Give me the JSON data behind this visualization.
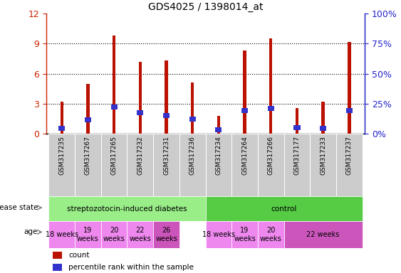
{
  "title": "GDS4025 / 1398014_at",
  "samples": [
    "GSM317235",
    "GSM317267",
    "GSM317265",
    "GSM317232",
    "GSM317231",
    "GSM317236",
    "GSM317234",
    "GSM317264",
    "GSM317266",
    "GSM317177",
    "GSM317233",
    "GSM317237"
  ],
  "count_values": [
    3.2,
    5.0,
    9.8,
    7.2,
    7.3,
    5.1,
    1.8,
    8.3,
    9.5,
    2.6,
    3.2,
    9.2
  ],
  "percentile_values": [
    4.5,
    11.5,
    22.5,
    17.5,
    15.0,
    12.5,
    3.5,
    19.5,
    21.0,
    5.0,
    4.5,
    19.5
  ],
  "bar_color": "#BB1100",
  "percentile_color": "#3333CC",
  "ylim_left": [
    0,
    12
  ],
  "ylim_right": [
    0,
    100
  ],
  "yticks_left": [
    0,
    3,
    6,
    9,
    12
  ],
  "yticks_right": [
    0,
    25,
    50,
    75,
    100
  ],
  "ytick_labels_left": [
    "0",
    "3",
    "6",
    "9",
    "12"
  ],
  "ytick_labels_right": [
    "0%",
    "25%",
    "50%",
    "75%",
    "100%"
  ],
  "disease_state_groups": [
    {
      "label": "streptozotocin-induced diabetes",
      "start": 0,
      "end": 6,
      "color": "#99EE88"
    },
    {
      "label": "control",
      "start": 6,
      "end": 12,
      "color": "#55CC44"
    }
  ],
  "age_groups": [
    {
      "label": "18 weeks",
      "start": 0,
      "end": 1,
      "color": "#EE88EE"
    },
    {
      "label": "19\nweeks",
      "start": 1,
      "end": 2,
      "color": "#EE88EE"
    },
    {
      "label": "20\nweeks",
      "start": 2,
      "end": 3,
      "color": "#EE88EE"
    },
    {
      "label": "22\nweeks",
      "start": 3,
      "end": 4,
      "color": "#EE88EE"
    },
    {
      "label": "26\nweeks",
      "start": 4,
      "end": 5,
      "color": "#CC55BB"
    },
    {
      "label": "18 weeks",
      "start": 6,
      "end": 7,
      "color": "#EE88EE"
    },
    {
      "label": "19\nweeks",
      "start": 7,
      "end": 8,
      "color": "#EE88EE"
    },
    {
      "label": "20\nweeks",
      "start": 8,
      "end": 9,
      "color": "#EE88EE"
    },
    {
      "label": "22 weeks",
      "start": 9,
      "end": 12,
      "color": "#CC55BB"
    }
  ],
  "legend_items": [
    {
      "label": "count",
      "color": "#BB1100"
    },
    {
      "label": "percentile rank within the sample",
      "color": "#3333CC"
    }
  ],
  "left_axis_color": "#CC2200",
  "right_axis_color": "#2222CC",
  "background_color": "#FFFFFF",
  "bar_width": 0.12,
  "percentile_bar_width": 0.25,
  "percentile_bar_height": 0.5,
  "grid_color": "#000000",
  "xtick_bg_color": "#CCCCCC",
  "disease_state_label": "disease state",
  "age_label": "age",
  "n_samples": 12,
  "n_diabetes": 6,
  "n_control": 6
}
